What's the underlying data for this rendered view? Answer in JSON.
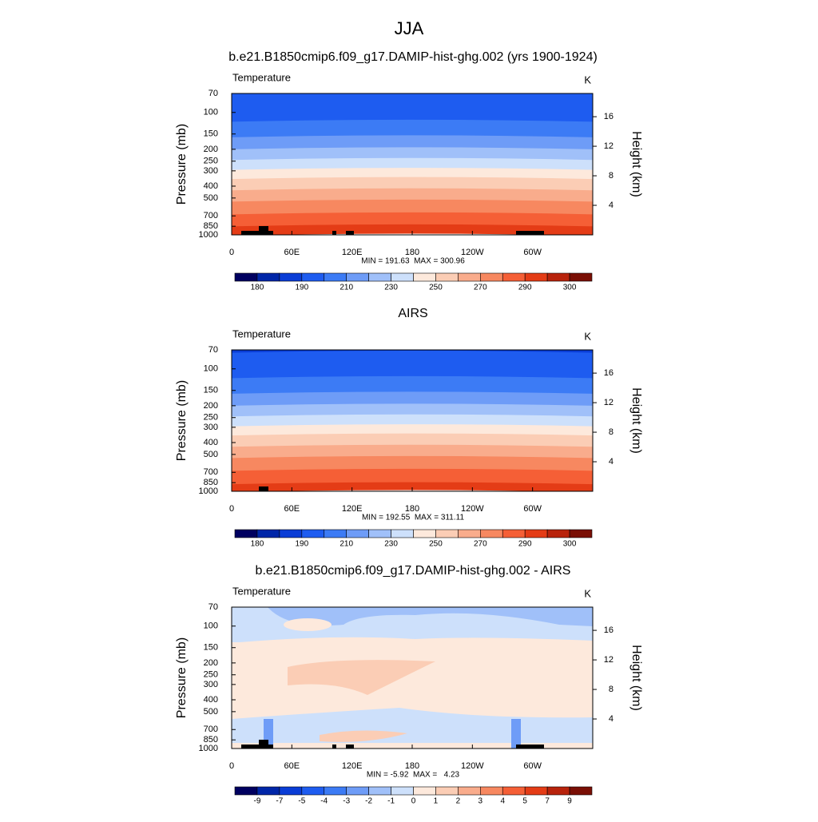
{
  "title": "JJA",
  "y_label": "Pressure (mb)",
  "y2_label": "Height (km)",
  "ylim": [
    70,
    1000
  ],
  "yticks": [
    70,
    100,
    150,
    200,
    250,
    300,
    400,
    500,
    700,
    850,
    1000
  ],
  "y2ticks": [
    4,
    8,
    12,
    16
  ],
  "xlim": [
    0,
    360
  ],
  "xticks": [
    0,
    {
      "value": 60,
      "label": "60E"
    },
    {
      "value": 120,
      "label": "120E"
    },
    180,
    {
      "value": 240,
      "label": "120W"
    },
    {
      "value": 300,
      "label": "60W"
    }
  ],
  "panels": [
    {
      "title": "b.e21.B1850cmip6.f09_g17.DAMIP-hist-ghg.002 (yrs 1900-1924)",
      "left_label": "Temperature",
      "right_label": "K",
      "stats": "MIN = 191.63  MAX = 300.96",
      "colorbar": {
        "colors": [
          "#000060",
          "#0026a8",
          "#0a3dd6",
          "#1e5cf0",
          "#3c7bf5",
          "#6e9cf7",
          "#a0c0f9",
          "#cde0fb",
          "#fde9dc",
          "#fbcdb5",
          "#f9ac8c",
          "#f78860",
          "#f55f36",
          "#e43c16",
          "#b8230c",
          "#7a0f05"
        ],
        "levels": [
          180,
          null,
          190,
          null,
          210,
          null,
          230,
          null,
          250,
          null,
          270,
          null,
          290,
          null,
          300
        ]
      }
    },
    {
      "title": "AIRS",
      "left_label": "Temperature",
      "right_label": "K",
      "stats": "MIN = 192.55  MAX = 311.11",
      "colorbar": {
        "colors": [
          "#000060",
          "#0026a8",
          "#0a3dd6",
          "#1e5cf0",
          "#3c7bf5",
          "#6e9cf7",
          "#a0c0f9",
          "#cde0fb",
          "#fde9dc",
          "#fbcdb5",
          "#f9ac8c",
          "#f78860",
          "#f55f36",
          "#e43c16",
          "#b8230c",
          "#7a0f05"
        ],
        "levels": [
          180,
          null,
          190,
          null,
          210,
          null,
          230,
          null,
          250,
          null,
          270,
          null,
          290,
          null,
          300
        ]
      }
    },
    {
      "title": "b.e21.B1850cmip6.f09_g17.DAMIP-hist-ghg.002 - AIRS",
      "left_label": "Temperature",
      "right_label": "K",
      "stats": "MIN = -5.92  MAX =   4.23",
      "colorbar": {
        "colors": [
          "#000060",
          "#0026a8",
          "#0a3dd6",
          "#1e5cf0",
          "#3c7bf5",
          "#6e9cf7",
          "#a0c0f9",
          "#cde0fb",
          "#fde9dc",
          "#fbcdb5",
          "#f9ac8c",
          "#f78860",
          "#f55f36",
          "#e43c16",
          "#b8230c",
          "#7a0f05"
        ],
        "levels": [
          -9,
          -7,
          -5,
          -4,
          -3,
          -2,
          -1,
          0,
          1,
          2,
          3,
          4,
          5,
          7,
          9
        ]
      }
    }
  ]
}
